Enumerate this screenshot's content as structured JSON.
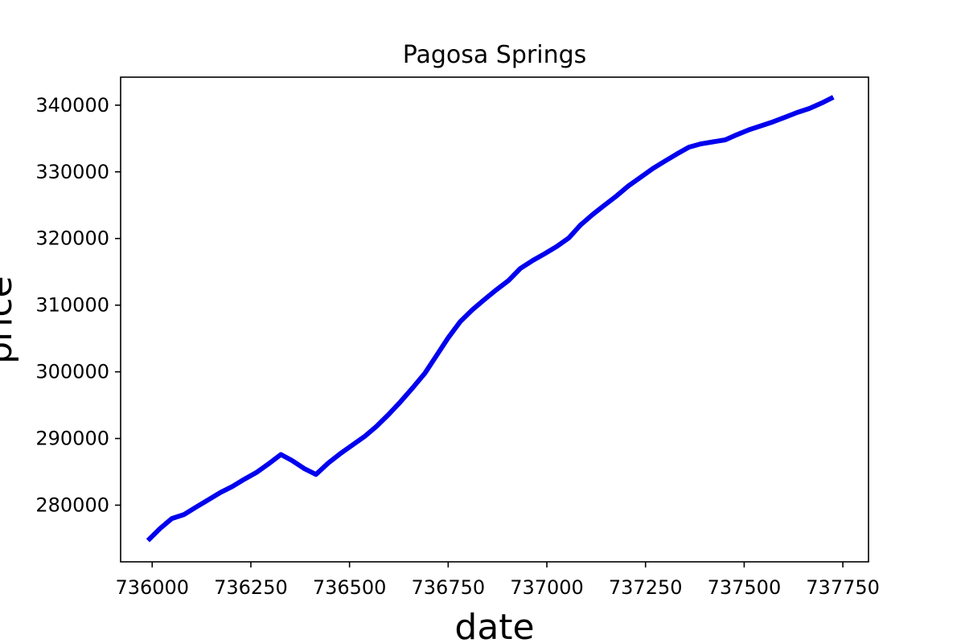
{
  "chart_data": {
    "type": "line",
    "title": "Pagosa Springs",
    "xlabel": "date",
    "ylabel": "price",
    "xlim": [
      735920,
      737815
    ],
    "ylim": [
      271500,
      344200
    ],
    "xticks": [
      736000,
      736250,
      736500,
      736750,
      737000,
      737250,
      737500,
      737750
    ],
    "yticks": [
      280000,
      290000,
      300000,
      310000,
      320000,
      330000,
      340000
    ],
    "grid": false,
    "line_color": "#0000ee",
    "series": [
      {
        "x": [
          735989,
          736020,
          736050,
          736081,
          736111,
          736142,
          736173,
          736203,
          736234,
          736264,
          736295,
          736326,
          736354,
          736385,
          736415,
          736446,
          736476,
          736507,
          736538,
          736568,
          736599,
          736629,
          736660,
          736691,
          736719,
          736750,
          736780,
          736811,
          736841,
          736872,
          736903,
          736933,
          736964,
          736994,
          737025,
          737056,
          737085,
          737116,
          737146,
          737177,
          737207,
          737238,
          737269,
          737299,
          737330,
          737360,
          737391,
          737421,
          737452,
          737483,
          737512,
          737543,
          737573,
          737604,
          737634,
          737665,
          737696,
          737726
        ],
        "y": [
          274700,
          276500,
          278000,
          278600,
          279700,
          280800,
          281900,
          282800,
          283900,
          284900,
          286200,
          287600,
          286700,
          285500,
          284600,
          286300,
          287700,
          289000,
          290300,
          291800,
          293600,
          295500,
          297600,
          299800,
          302300,
          305100,
          307500,
          309300,
          310800,
          312300,
          313700,
          315500,
          316700,
          317700,
          318800,
          320100,
          322000,
          323600,
          325000,
          326400,
          327900,
          329200,
          330500,
          331600,
          332700,
          333700,
          334200,
          334500,
          334800,
          335600,
          336300,
          336900,
          337500,
          338200,
          338900,
          339500,
          340300,
          341200
        ]
      }
    ]
  }
}
